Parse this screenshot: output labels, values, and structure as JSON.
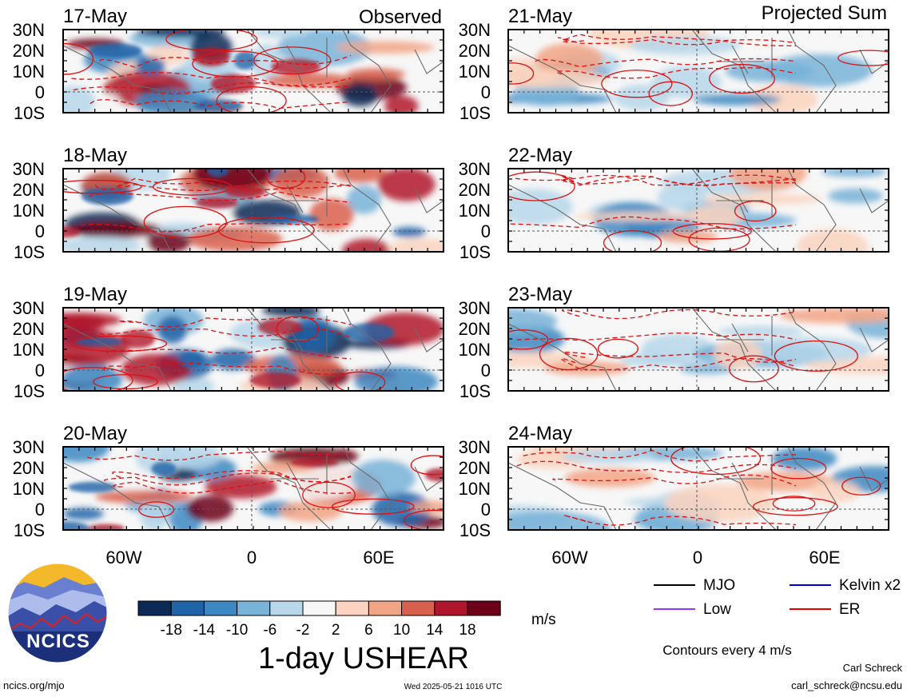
{
  "columns": {
    "left_title": "Observed",
    "right_title": "Projected Sum"
  },
  "panels_left": [
    "17-May",
    "18-May",
    "19-May",
    "20-May"
  ],
  "panels_right": [
    "21-May",
    "22-May",
    "23-May",
    "24-May"
  ],
  "lat_labels": [
    "30N",
    "20N",
    "10N",
    "0",
    "10S"
  ],
  "lon_labels": [
    "60W",
    "0",
    "60E"
  ],
  "colorbar": {
    "labels": [
      "-18",
      "-14",
      "-10",
      "-6",
      "-2",
      "2",
      "6",
      "10",
      "14",
      "18"
    ],
    "colors": [
      "#0b2a55",
      "#1f63a8",
      "#3d88c2",
      "#78b3d8",
      "#b7d7ea",
      "#f7f7f7",
      "#fbd3be",
      "#f2a585",
      "#d9604d",
      "#b0152b",
      "#6c0019"
    ],
    "unit": "m/s"
  },
  "title": "1-day USHEAR",
  "legend": {
    "items": [
      {
        "label": "MJO",
        "color": "#000000"
      },
      {
        "label": "Kelvin x2",
        "color": "#0000dd"
      },
      {
        "label": "Low",
        "color": "#9933ff"
      },
      {
        "label": "ER",
        "color": "#dd0000"
      }
    ],
    "note": "Contours every 4 m/s"
  },
  "logo_text": "NCICS",
  "footer": {
    "url": "ncics.org/mjo",
    "timestamp": "Wed 2025-05-21 1016 UTC",
    "author": "Carl Schreck",
    "email": "carl_schreck@ncsu.edu"
  }
}
